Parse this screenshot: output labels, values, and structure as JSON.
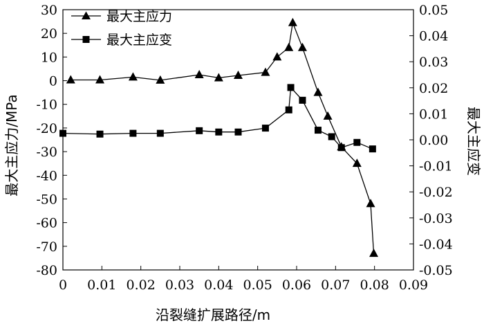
{
  "chart_data": {
    "type": "line",
    "xlabel": "沿裂缝扩展路径/m",
    "ylabel_left": "最大主应力/MPa",
    "ylabel_right": "最大主应变",
    "xlim": [
      0,
      0.09
    ],
    "ylim_left": [
      -80,
      30
    ],
    "ylim_right": [
      -0.05,
      0.05
    ],
    "x_ticks": [
      "0",
      "0.01",
      "0.02",
      "0.03",
      "0.04",
      "0.05",
      "0.06",
      "0.07",
      "0.08",
      "0.09"
    ],
    "y_left_ticks": [
      "30",
      "20",
      "10",
      "0",
      "-10",
      "-20",
      "-30",
      "-40",
      "-50",
      "-60",
      "-70",
      "-80"
    ],
    "y_right_ticks": [
      "0.05",
      "0.04",
      "0.03",
      "0.02",
      "0.01",
      "0.00",
      "-0.01",
      "-0.02",
      "-0.03",
      "-0.04",
      "-0.05"
    ],
    "grid": false,
    "legend_position": "top-left",
    "series": [
      {
        "name": "最大主应力",
        "axis": "left",
        "marker": "triangle",
        "points": [
          [
            0.002,
            0.3
          ],
          [
            0.0095,
            0.3
          ],
          [
            0.018,
            1.5
          ],
          [
            0.025,
            0.2
          ],
          [
            0.035,
            2.5
          ],
          [
            0.04,
            1.2
          ],
          [
            0.045,
            2.2
          ],
          [
            0.052,
            3.5
          ],
          [
            0.055,
            10.0
          ],
          [
            0.058,
            14.0
          ],
          [
            0.059,
            24.5
          ],
          [
            0.0615,
            14.0
          ],
          [
            0.0655,
            -5.0
          ],
          [
            0.068,
            -15.0
          ],
          [
            0.0715,
            -28.0
          ],
          [
            0.0755,
            -35.0
          ],
          [
            0.079,
            -52.0
          ],
          [
            0.0798,
            -73.0
          ]
        ]
      },
      {
        "name": "最大主应变",
        "axis": "right",
        "marker": "square",
        "points": [
          [
            0,
            0.0025
          ],
          [
            0.0095,
            0.0022
          ],
          [
            0.018,
            0.0025
          ],
          [
            0.025,
            0.0025
          ],
          [
            0.035,
            0.0035
          ],
          [
            0.04,
            0.003
          ],
          [
            0.045,
            0.003
          ],
          [
            0.052,
            0.0045
          ],
          [
            0.058,
            0.0115
          ],
          [
            0.0585,
            0.0201
          ],
          [
            0.0615,
            0.0152
          ],
          [
            0.0655,
            0.0037
          ],
          [
            0.069,
            0.0012
          ],
          [
            0.0715,
            -0.003
          ],
          [
            0.0755,
            -0.001
          ],
          [
            0.0795,
            -0.0035
          ]
        ]
      }
    ]
  }
}
